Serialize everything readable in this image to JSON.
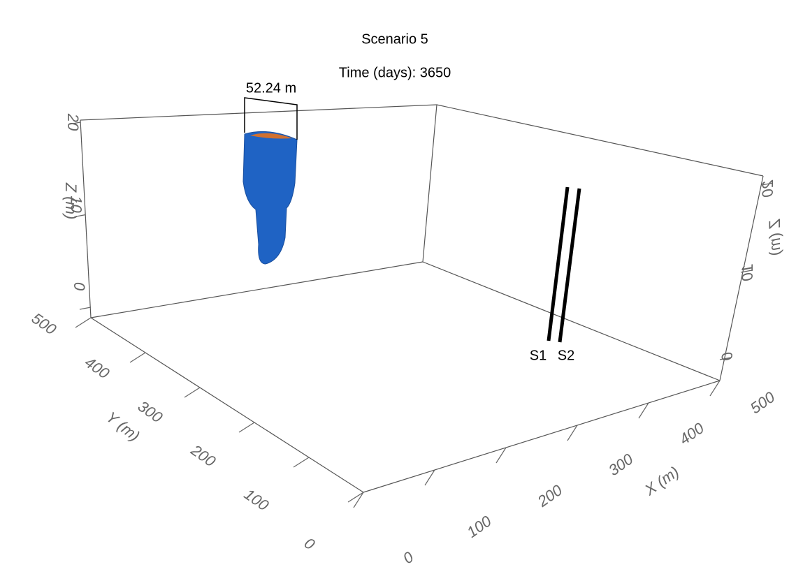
{
  "header": {
    "title": "Scenario 5",
    "subtitle": "Time (days): 3650"
  },
  "annotation": "52.24 m",
  "wells": [
    "S1",
    "S2"
  ],
  "axes": {
    "x": {
      "label": "X (m)",
      "ticks": [
        0,
        100,
        200,
        300,
        400,
        500
      ]
    },
    "y": {
      "label": "Y (m)",
      "ticks": [
        0,
        100,
        200,
        300,
        400,
        500
      ]
    },
    "z": {
      "label": "Z (m)",
      "ticks": [
        0,
        10,
        20
      ]
    }
  }
}
